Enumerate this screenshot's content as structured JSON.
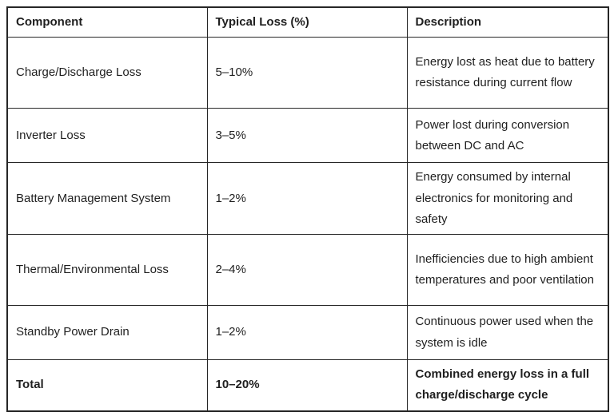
{
  "table": {
    "headers": {
      "component": "Component",
      "loss": "Typical Loss (%)",
      "description": "Description"
    },
    "rows": [
      {
        "component": "Charge/Discharge Loss",
        "loss": "5–10%",
        "description": "Energy lost as heat due to battery resistance during current flow"
      },
      {
        "component": "Inverter Loss",
        "loss": "3–5%",
        "description": "Power lost during conversion between DC and AC"
      },
      {
        "component": "Battery Management System",
        "loss": "1–2%",
        "description": "Energy consumed by internal electronics for monitoring and safety"
      },
      {
        "component": "Thermal/Environmental Loss",
        "loss": "2–4%",
        "description": "Inefficiencies due to high ambient temperatures and poor ventilation"
      },
      {
        "component": "Standby Power Drain",
        "loss": "1–2%",
        "description": "Continuous power used when the system is idle"
      },
      {
        "component": "Total",
        "loss": "10–20%",
        "description": "Combined energy loss in a full charge/discharge cycle"
      }
    ],
    "colors": {
      "border": "#262626",
      "text": "#1f1f1f",
      "background": "#ffffff"
    }
  }
}
